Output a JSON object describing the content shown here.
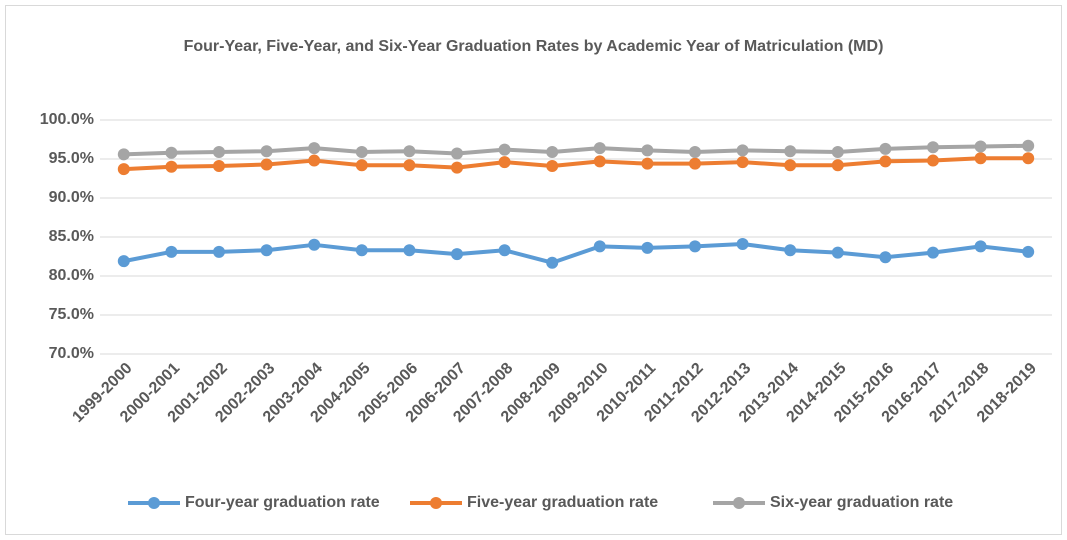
{
  "chart_data": {
    "type": "line",
    "title": "Four-Year, Five-Year, and Six-Year Graduation Rates by Academic Year of Matriculation (MD)",
    "categories": [
      "1999-2000",
      "2000-2001",
      "2001-2002",
      "2002-2003",
      "2003-2004",
      "2004-2005",
      "2005-2006",
      "2006-2007",
      "2007-2008",
      "2008-2009",
      "2009-2010",
      "2010-2011",
      "2011-2012",
      "2012-2013",
      "2013-2014",
      "2014-2015",
      "2015-2016",
      "2016-2017",
      "2017-2018",
      "2018-2019"
    ],
    "series": [
      {
        "name": "Four-year graduation rate",
        "color": "#5b9bd5",
        "values": [
          81.9,
          83.1,
          83.1,
          83.3,
          84.0,
          83.3,
          83.3,
          82.8,
          83.3,
          81.7,
          83.8,
          83.6,
          83.8,
          84.1,
          83.3,
          83.0,
          82.4,
          83.0,
          83.8,
          83.1
        ]
      },
      {
        "name": "Five-year graduation rate",
        "color": "#ed7d31",
        "values": [
          93.7,
          94.0,
          94.1,
          94.3,
          94.8,
          94.2,
          94.2,
          93.9,
          94.6,
          94.1,
          94.7,
          94.4,
          94.4,
          94.6,
          94.2,
          94.2,
          94.7,
          94.8,
          95.1,
          95.1
        ]
      },
      {
        "name": "Six-year graduation rate",
        "color": "#a5a5a5",
        "values": [
          95.6,
          95.8,
          95.9,
          96.0,
          96.4,
          95.9,
          96.0,
          95.7,
          96.2,
          95.9,
          96.4,
          96.1,
          95.9,
          96.1,
          96.0,
          95.9,
          96.3,
          96.5,
          96.6,
          96.7
        ]
      }
    ],
    "ylim": [
      70,
      100
    ],
    "yticks": [
      {
        "value": 70,
        "label": "70.0%"
      },
      {
        "value": 75,
        "label": "75.0%"
      },
      {
        "value": 80,
        "label": "80.0%"
      },
      {
        "value": 85,
        "label": "85.0%"
      },
      {
        "value": 90,
        "label": "90.0%"
      },
      {
        "value": 95,
        "label": "95.0%"
      },
      {
        "value": 100,
        "label": "100.0%"
      }
    ],
    "grid": true,
    "legend": "bottom"
  }
}
